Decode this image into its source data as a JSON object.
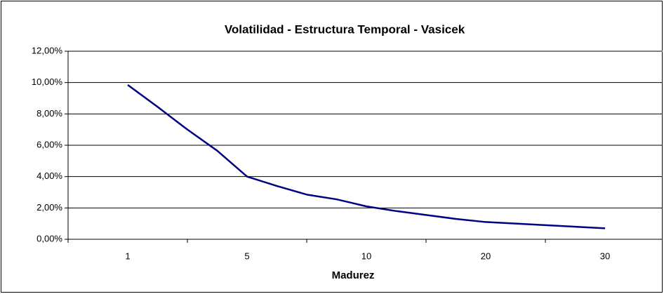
{
  "chart_data": {
    "type": "line",
    "title": "Volatilidad - Estructura Temporal - Vasicek",
    "x_label": "Madurez",
    "categories": [
      "1",
      null,
      null,
      null,
      "5",
      null,
      null,
      null,
      "10",
      null,
      null,
      null,
      "20",
      null,
      null,
      null,
      "30"
    ],
    "series": [
      {
        "name": "Volatilidad",
        "color": "#000080",
        "values": [
          9.85,
          8.45,
          7.0,
          5.65,
          4.0,
          3.4,
          2.85,
          2.55,
          2.1,
          1.8,
          1.55,
          1.3,
          1.1,
          1.0,
          0.9,
          0.8,
          0.7
        ]
      }
    ],
    "ylim": [
      0,
      12
    ],
    "yticks": [
      {
        "value": 0,
        "label": "0,00%"
      },
      {
        "value": 2,
        "label": "2,00%"
      },
      {
        "value": 4,
        "label": "4,00%"
      },
      {
        "value": 6,
        "label": "6,00%"
      },
      {
        "value": 8,
        "label": "8,00%"
      },
      {
        "value": 10,
        "label": "10,00%"
      },
      {
        "value": 12,
        "label": "12,00%"
      }
    ],
    "grid": true
  }
}
